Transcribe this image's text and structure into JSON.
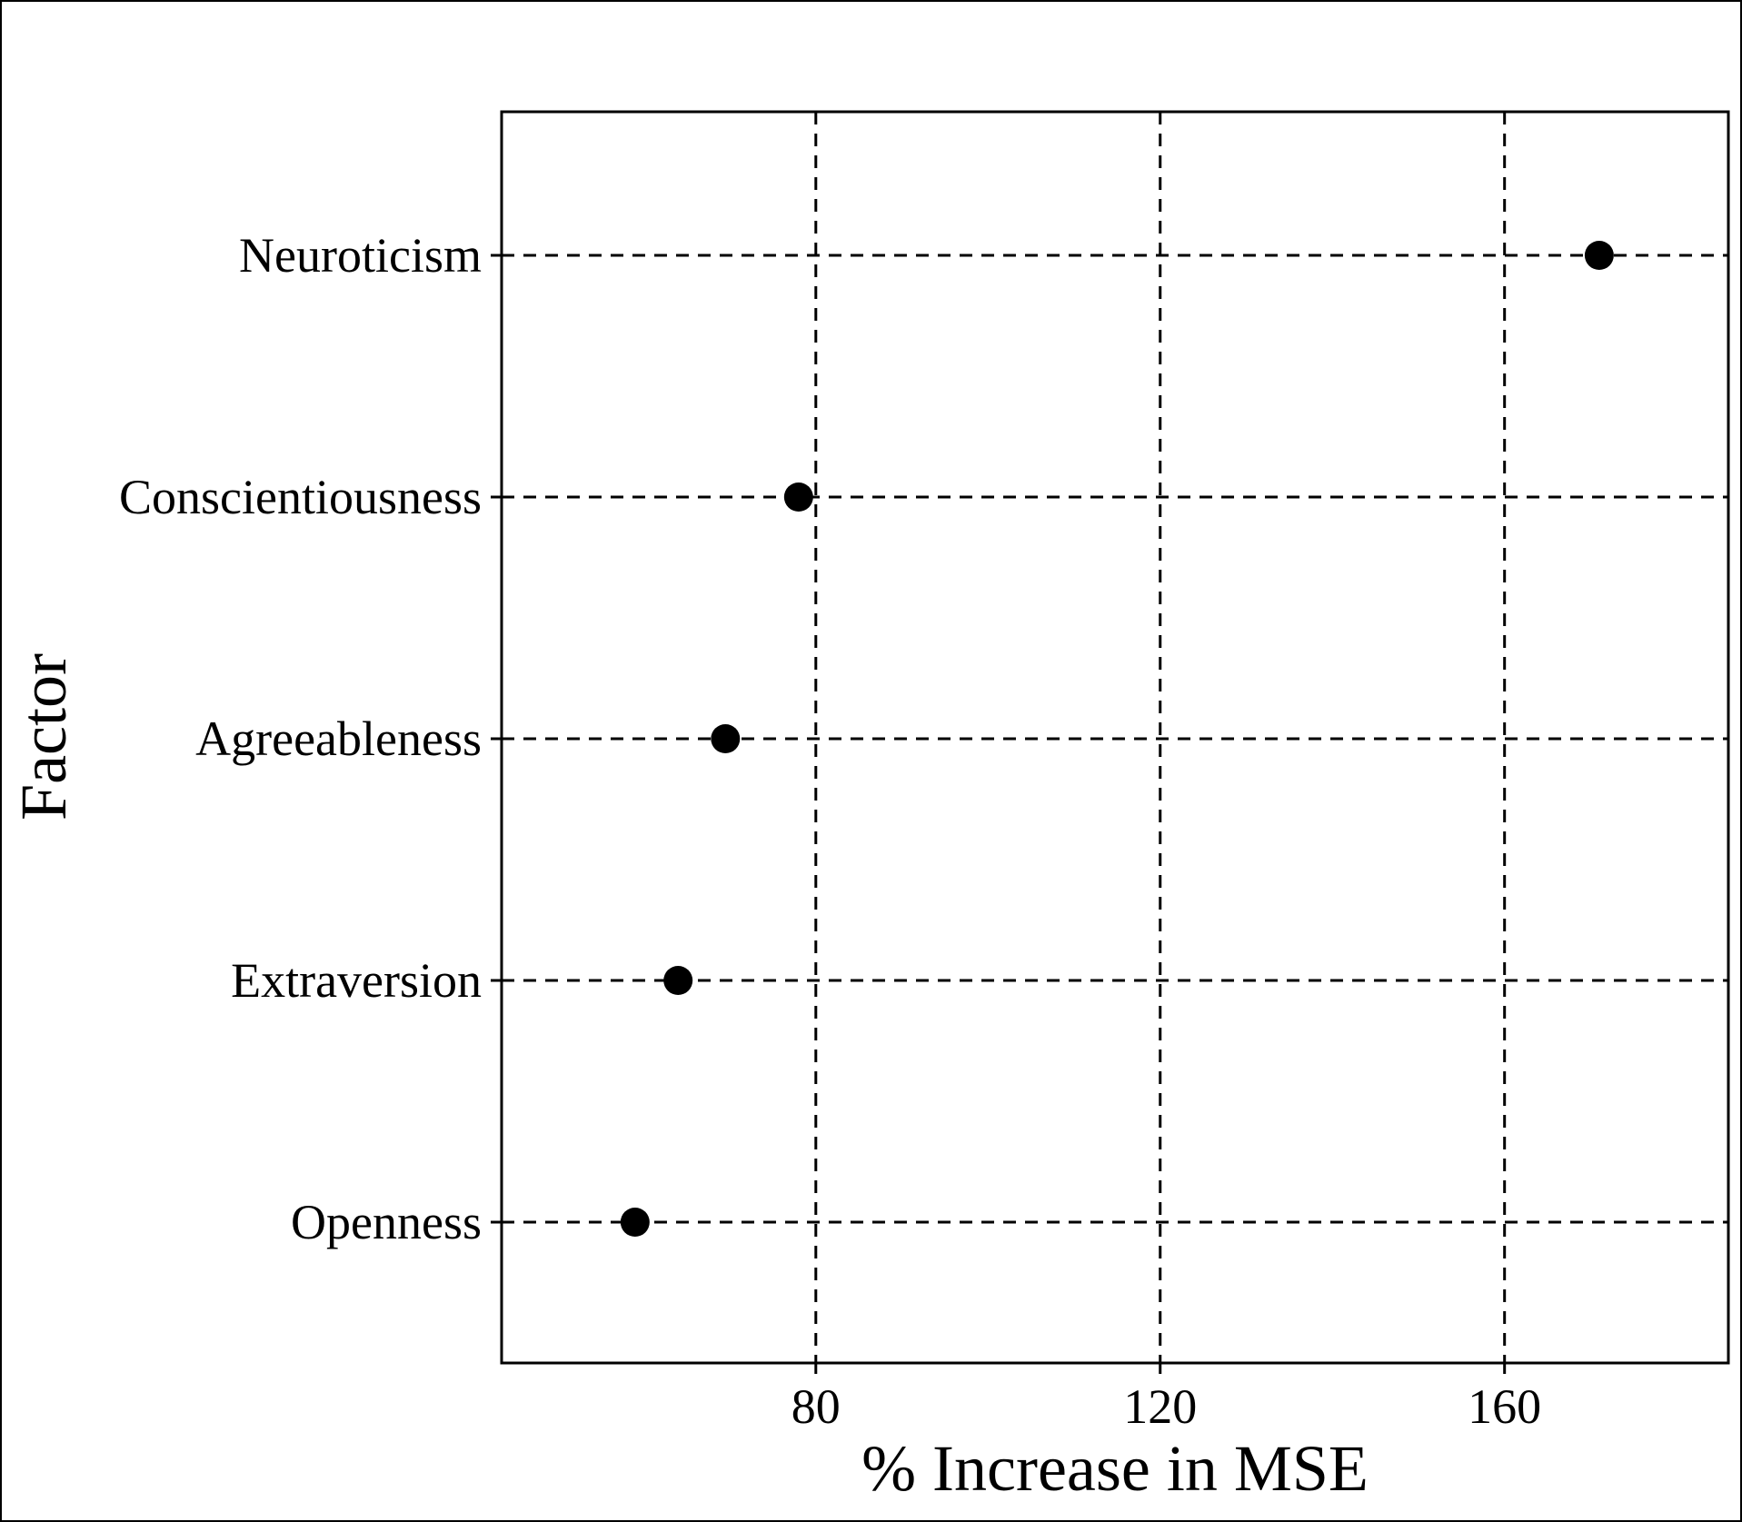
{
  "chart_data": {
    "type": "scatter",
    "subtype": "dot-plot",
    "title": "",
    "xlabel": "% Increase in MSE",
    "ylabel": "Factor",
    "categories": [
      "Openness",
      "Extraversion",
      "Agreeableness",
      "Conscientiousness",
      "Neuroticism"
    ],
    "values": [
      59,
      64,
      69.5,
      78,
      171
    ],
    "xlim": [
      43.5,
      186
    ],
    "xticks": [
      80,
      120,
      160
    ],
    "xtick_labels": [
      "80",
      "120",
      "160"
    ],
    "grid": true,
    "grid_style": "dashed",
    "legend": "none",
    "colors": {
      "point": "#000000",
      "grid": "#000000",
      "axis": "#000000"
    }
  }
}
